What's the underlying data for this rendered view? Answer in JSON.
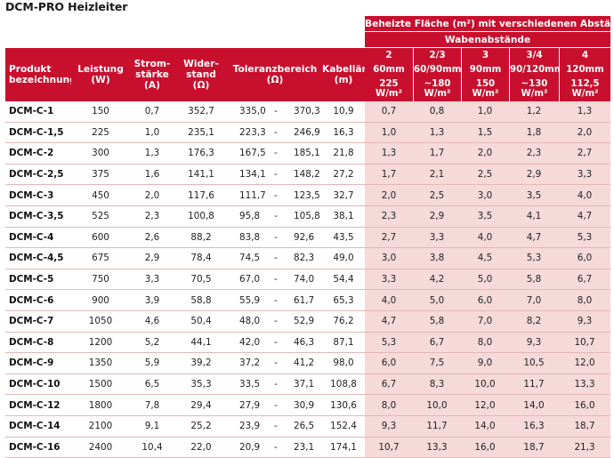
{
  "title": "DCM-PRO Heizleiter",
  "header": {
    "group_title": "Beheizte Fläche (m²) mit verschiedenen Abständen",
    "subgroup_title": "Wabenabstände",
    "columns": {
      "produkt": [
        "Produkt",
        "bezeichnung"
      ],
      "leistung": [
        "Leistung",
        "(W)"
      ],
      "strom": [
        "Strom-",
        "stärke",
        "(A)"
      ],
      "widerstand": [
        "Wider-",
        "stand",
        "(Ω)"
      ],
      "toleranz": [
        "Toleranzbereich",
        "(Ω)"
      ],
      "kabel": [
        "Kabellänge",
        "(m)"
      ]
    },
    "waben": [
      "2",
      "2/3",
      "3",
      "3/4",
      "4"
    ],
    "abstand": [
      "60mm",
      "60/90mm",
      "90mm",
      "90/120mm",
      "120mm"
    ],
    "leistung_m2": [
      [
        "225",
        "W/m²"
      ],
      [
        "~180",
        "W/m²"
      ],
      [
        "150",
        "W/m²"
      ],
      [
        "~130",
        "W/m²"
      ],
      [
        "112,5",
        "W/m²"
      ]
    ]
  },
  "rows": [
    {
      "name": "DCM-C-1",
      "leistung": "150",
      "strom": "0,7",
      "widerstand": "352,7",
      "tol_min": "335,0",
      "tol_max": "370,3",
      "kabel": "10,9",
      "flaeche": [
        "0,7",
        "0,8",
        "1,0",
        "1,2",
        "1,3"
      ]
    },
    {
      "name": "DCM-C-1,5",
      "leistung": "225",
      "strom": "1,0",
      "widerstand": "235,1",
      "tol_min": "223,3",
      "tol_max": "246,9",
      "kabel": "16,3",
      "flaeche": [
        "1,0",
        "1,3",
        "1,5",
        "1,8",
        "2,0"
      ]
    },
    {
      "name": "DCM-C-2",
      "leistung": "300",
      "strom": "1,3",
      "widerstand": "176,3",
      "tol_min": "167,5",
      "tol_max": "185,1",
      "kabel": "21,8",
      "flaeche": [
        "1,3",
        "1,7",
        "2,0",
        "2,3",
        "2,7"
      ]
    },
    {
      "name": "DCM-C-2,5",
      "leistung": "375",
      "strom": "1,6",
      "widerstand": "141,1",
      "tol_min": "134,1",
      "tol_max": "148,2",
      "kabel": "27,2",
      "flaeche": [
        "1,7",
        "2,1",
        "2,5",
        "2,9",
        "3,3"
      ]
    },
    {
      "name": "DCM-C-3",
      "leistung": "450",
      "strom": "2,0",
      "widerstand": "117,6",
      "tol_min": "111,7",
      "tol_max": "123,5",
      "kabel": "32,7",
      "flaeche": [
        "2,0",
        "2,5",
        "3,0",
        "3,5",
        "4,0"
      ]
    },
    {
      "name": "DCM-C-3,5",
      "leistung": "525",
      "strom": "2,3",
      "widerstand": "100,8",
      "tol_min": "95,8",
      "tol_max": "105,8",
      "kabel": "38,1",
      "flaeche": [
        "2,3",
        "2,9",
        "3,5",
        "4,1",
        "4,7"
      ]
    },
    {
      "name": "DCM-C-4",
      "leistung": "600",
      "strom": "2,6",
      "widerstand": "88,2",
      "tol_min": "83,8",
      "tol_max": "92,6",
      "kabel": "43,5",
      "flaeche": [
        "2,7",
        "3,3",
        "4,0",
        "4,7",
        "5,3"
      ]
    },
    {
      "name": "DCM-C-4,5",
      "leistung": "675",
      "strom": "2,9",
      "widerstand": "78,4",
      "tol_min": "74,5",
      "tol_max": "82,3",
      "kabel": "49,0",
      "flaeche": [
        "3,0",
        "3,8",
        "4,5",
        "5,3",
        "6,0"
      ]
    },
    {
      "name": "DCM-C-5",
      "leistung": "750",
      "strom": "3,3",
      "widerstand": "70,5",
      "tol_min": "67,0",
      "tol_max": "74,0",
      "kabel": "54,4",
      "flaeche": [
        "3,3",
        "4,2",
        "5,0",
        "5,8",
        "6,7"
      ]
    },
    {
      "name": "DCM-C-6",
      "leistung": "900",
      "strom": "3,9",
      "widerstand": "58,8",
      "tol_min": "55,9",
      "tol_max": "61,7",
      "kabel": "65,3",
      "flaeche": [
        "4,0",
        "5,0",
        "6,0",
        "7,0",
        "8,0"
      ]
    },
    {
      "name": "DCM-C-7",
      "leistung": "1050",
      "strom": "4,6",
      "widerstand": "50,4",
      "tol_min": "48,0",
      "tol_max": "52,9",
      "kabel": "76,2",
      "flaeche": [
        "4,7",
        "5,8",
        "7,0",
        "8,2",
        "9,3"
      ]
    },
    {
      "name": "DCM-C-8",
      "leistung": "1200",
      "strom": "5,2",
      "widerstand": "44,1",
      "tol_min": "42,0",
      "tol_max": "46,3",
      "kabel": "87,1",
      "flaeche": [
        "5,3",
        "6,7",
        "8,0",
        "9,3",
        "10,7"
      ]
    },
    {
      "name": "DCM-C-9",
      "leistung": "1350",
      "strom": "5,9",
      "widerstand": "39,2",
      "tol_min": "37,2",
      "tol_max": "41,2",
      "kabel": "98,0",
      "flaeche": [
        "6,0",
        "7,5",
        "9,0",
        "10,5",
        "12,0"
      ]
    },
    {
      "name": "DCM-C-10",
      "leistung": "1500",
      "strom": "6,5",
      "widerstand": "35,3",
      "tol_min": "33,5",
      "tol_max": "37,1",
      "kabel": "108,8",
      "flaeche": [
        "6,7",
        "8,3",
        "10,0",
        "11,7",
        "13,3"
      ]
    },
    {
      "name": "DCM-C-12",
      "leistung": "1800",
      "strom": "7,8",
      "widerstand": "29,4",
      "tol_min": "27,9",
      "tol_max": "30,9",
      "kabel": "130,6",
      "flaeche": [
        "8,0",
        "10,0",
        "12,0",
        "14,0",
        "16,0"
      ]
    },
    {
      "name": "DCM-C-14",
      "leistung": "2100",
      "strom": "9,1",
      "widerstand": "25,2",
      "tol_min": "23,9",
      "tol_max": "26,5",
      "kabel": "152,4",
      "flaeche": [
        "9,3",
        "11,7",
        "14,0",
        "16,3",
        "18,7"
      ]
    },
    {
      "name": "DCM-C-16",
      "leistung": "2400",
      "strom": "10,4",
      "widerstand": "22,0",
      "tol_min": "20,9",
      "tol_max": "23,1",
      "kabel": "174,1",
      "flaeche": [
        "10,7",
        "13,3",
        "16,0",
        "18,7",
        "21,3"
      ]
    }
  ],
  "separator": "-",
  "colors": {
    "accent": "#c8102e",
    "highlight": "#f6d9d9",
    "row_line": "#e3b7b7"
  }
}
